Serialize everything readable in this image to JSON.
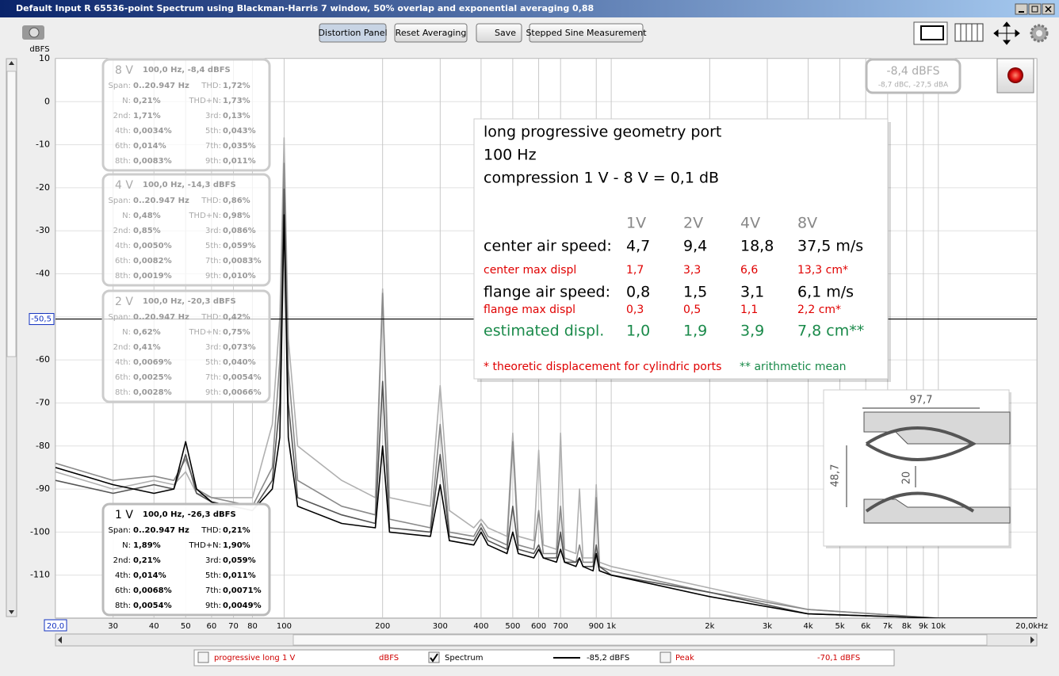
{
  "window": {
    "title": "Default Input R 65536-point Spectrum using Blackman-Harris 7 window, 50% overlap and exponential averaging 0,88"
  },
  "toolbar": {
    "buttons": [
      "Distortion Panel",
      "Reset Averaging",
      "Save",
      "Stepped Sine Measurement"
    ]
  },
  "chart_data": {
    "type": "line",
    "y_label": "dBFS",
    "log_x": true,
    "grid": true,
    "xlim": [
      20,
      20000
    ],
    "ylim": [
      -120,
      10
    ],
    "xticks": [
      {
        "value": 20,
        "label": "20,0"
      },
      30,
      40,
      50,
      60,
      70,
      80,
      100,
      200,
      300,
      400,
      500,
      600,
      700,
      900,
      {
        "value": 1000,
        "label": "1k"
      },
      {
        "value": 2000,
        "label": "2k"
      },
      {
        "value": 3000,
        "label": "3k"
      },
      {
        "value": 4000,
        "label": "4k"
      },
      {
        "value": 5000,
        "label": "5k"
      },
      {
        "value": 6000,
        "label": "6k"
      },
      {
        "value": 7000,
        "label": "7k"
      },
      {
        "value": 8000,
        "label": "8k"
      },
      {
        "value": 9000,
        "label": "9k"
      },
      {
        "value": 10000,
        "label": "10k"
      },
      {
        "value": 20000,
        "label": "20,0kHz"
      }
    ],
    "yticks": [
      10,
      0,
      -10,
      -20,
      -30,
      -40,
      -50,
      -60,
      -70,
      -80,
      -90,
      -100,
      -110
    ],
    "cursor": {
      "value": -50.5,
      "label": "-50,5"
    },
    "x": [
      20,
      30,
      40,
      46,
      50,
      54,
      60,
      80,
      92,
      97,
      100,
      103,
      110,
      150,
      190,
      200,
      210,
      280,
      300,
      320,
      380,
      400,
      420,
      480,
      500,
      520,
      580,
      600,
      620,
      680,
      700,
      720,
      780,
      800,
      820,
      880,
      900,
      920,
      1000,
      2000,
      4000,
      10000,
      20000
    ],
    "series": [
      {
        "name": "8 V",
        "color": "#b0b0b0",
        "values": [
          -86,
          -90,
          -88,
          -89,
          -86,
          -91,
          -92,
          -92,
          -75,
          -50,
          -8.4,
          -55,
          -80,
          -88,
          -92,
          -43.5,
          -92,
          -94,
          -66,
          -95,
          -99,
          -97,
          -99,
          -101,
          -77,
          -101,
          -102,
          -81,
          -103,
          -104,
          -77,
          -104,
          -105,
          -90,
          -106,
          -106,
          -89,
          -107,
          -108,
          -113,
          -118,
          -120,
          -120
        ]
      },
      {
        "name": "4 V",
        "color": "#8a8a8a",
        "values": [
          -84,
          -88,
          -87,
          -88,
          -83,
          -90,
          -92,
          -94,
          -85,
          -60,
          -14.3,
          -62,
          -88,
          -94,
          -96,
          -44.5,
          -97,
          -99,
          -75,
          -100,
          -101,
          -98,
          -101,
          -103,
          -79,
          -103,
          -104,
          -95,
          -105,
          -105,
          -94,
          -106,
          -107,
          -103,
          -107,
          -107,
          -92,
          -108,
          -109,
          -114,
          -118,
          -120,
          -120
        ]
      },
      {
        "name": "2 V",
        "color": "#555555",
        "values": [
          -88,
          -91,
          -89,
          -90,
          -82,
          -91,
          -93,
          -95,
          -88,
          -70,
          -20.3,
          -70,
          -92,
          -96,
          -98,
          -65,
          -99,
          -100,
          -82,
          -101,
          -102,
          -99,
          -102,
          -104,
          -94,
          -104,
          -105,
          -103,
          -106,
          -106,
          -100,
          -107,
          -107,
          -106,
          -108,
          -108,
          -103,
          -108,
          -110,
          -114,
          -119,
          -120,
          -120
        ]
      },
      {
        "name": "1 V",
        "color": "#000000",
        "values": [
          -85,
          -89,
          -91,
          -90,
          -79,
          -90,
          -93,
          -95,
          -90,
          -78,
          -26.3,
          -78,
          -94,
          -98,
          -99,
          -80,
          -100,
          -101,
          -89,
          -102,
          -103,
          -100,
          -103,
          -105,
          -100,
          -105,
          -106,
          -104,
          -106,
          -107,
          -104,
          -107,
          -108,
          -106,
          -108,
          -109,
          -105,
          -109,
          -110,
          -115,
          -119,
          -120,
          -120
        ]
      }
    ]
  },
  "distortion_panels": [
    {
      "header": "100,0 Hz, -8,4 dBFS",
      "rows": [
        [
          "Span:",
          "0..20.947 Hz",
          "THD:",
          "1,72%"
        ],
        [
          "N:",
          "0,21%",
          "THD+N:",
          "1,73%"
        ],
        [
          "2nd:",
          "1,71%",
          "3rd:",
          "0,13%"
        ],
        [
          "4th:",
          "0,0034%",
          "5th:",
          "0,043%"
        ],
        [
          "6th:",
          "0,014%",
          "7th:",
          "0,035%"
        ],
        [
          "8th:",
          "0,0083%",
          "9th:",
          "0,011%"
        ]
      ]
    },
    {
      "header": "100,0 Hz, -14,3 dBFS",
      "rows": [
        [
          "Span:",
          "0..20.947 Hz",
          "THD:",
          "0,86%"
        ],
        [
          "N:",
          "0,48%",
          "THD+N:",
          "0,98%"
        ],
        [
          "2nd:",
          "0,85%",
          "3rd:",
          "0,086%"
        ],
        [
          "4th:",
          "0,0050%",
          "5th:",
          "0,059%"
        ],
        [
          "6th:",
          "0,0082%",
          "7th:",
          "0,0083%"
        ],
        [
          "8th:",
          "0,0019%",
          "9th:",
          "0,010%"
        ]
      ]
    },
    {
      "header": "100,0 Hz, -20,3 dBFS",
      "rows": [
        [
          "Span:",
          "0..20.947 Hz",
          "THD:",
          "0,42%"
        ],
        [
          "N:",
          "0,62%",
          "THD+N:",
          "0,75%"
        ],
        [
          "2nd:",
          "0,41%",
          "3rd:",
          "0,073%"
        ],
        [
          "4th:",
          "0,0069%",
          "5th:",
          "0,040%"
        ],
        [
          "6th:",
          "0,0025%",
          "7th:",
          "0,0054%"
        ],
        [
          "8th:",
          "0,0028%",
          "9th:",
          "0,0066%"
        ]
      ]
    },
    {
      "header": "100,0 Hz, -26,3 dBFS",
      "rows": [
        [
          "Span:",
          "0..20.947 Hz",
          "THD:",
          "0,21%"
        ],
        [
          "N:",
          "1,89%",
          "THD+N:",
          "1,90%"
        ],
        [
          "2nd:",
          "0,21%",
          "3rd:",
          "0,059%"
        ],
        [
          "4th:",
          "0,014%",
          "5th:",
          "0,011%"
        ],
        [
          "6th:",
          "0,0068%",
          "7th:",
          "0,0071%"
        ],
        [
          "8th:",
          "0,0054%",
          "9th:",
          "0,0049%"
        ]
      ]
    }
  ],
  "level_meter": {
    "value": "-8,4 dBFS",
    "weighted": "-8,7 dBC, -27,5 dBA"
  },
  "annotation": {
    "lines": [
      "long progressive geometry port",
      "100 Hz",
      "compression 1 V - 8 V = 0,1 dB"
    ],
    "table_header": [
      "1V",
      "2V",
      "4V",
      "8V"
    ],
    "rows": [
      {
        "color": "#000000",
        "cells": [
          "center air speed:",
          "4,7",
          "9,4",
          "18,8",
          "37,5 m/s"
        ]
      },
      {
        "color": "#e00000",
        "cells": [
          "center max displ",
          "1,7",
          "3,3",
          "6,6",
          "13,3 cm*"
        ]
      },
      {
        "color": "#000000",
        "cells": [
          "flange air speed:",
          "0,8",
          "1,5",
          "3,1",
          "6,1  m/s"
        ]
      },
      {
        "color": "#e00000",
        "cells": [
          "flange max displ",
          "0,3",
          "0,5",
          "1,1",
          "2,2 cm*"
        ]
      },
      {
        "color": "#1a8a4a",
        "cells": [
          "estimated displ.",
          "1,0",
          "1,9",
          "3,9",
          "7,8 cm**"
        ]
      }
    ],
    "footnotes": [
      {
        "color": "#e00000",
        "text": "* theoretic displacement for cylindric ports"
      },
      {
        "color": "#1a8a4a",
        "text": "** arithmetic mean"
      }
    ]
  },
  "inset": {
    "labels": [
      "97,7",
      "48,7",
      "20"
    ]
  },
  "legend_bar": {
    "items": [
      {
        "name": "progressive long 1 V",
        "reading": "dBFS",
        "checked": false,
        "color": "#d00000"
      },
      {
        "name": "Spectrum",
        "reading": "-85,2 dBFS",
        "checked": true,
        "color": "#000000"
      },
      {
        "name": "Peak",
        "reading": "-70,1 dBFS",
        "checked": false,
        "color": "#d00000"
      }
    ]
  }
}
